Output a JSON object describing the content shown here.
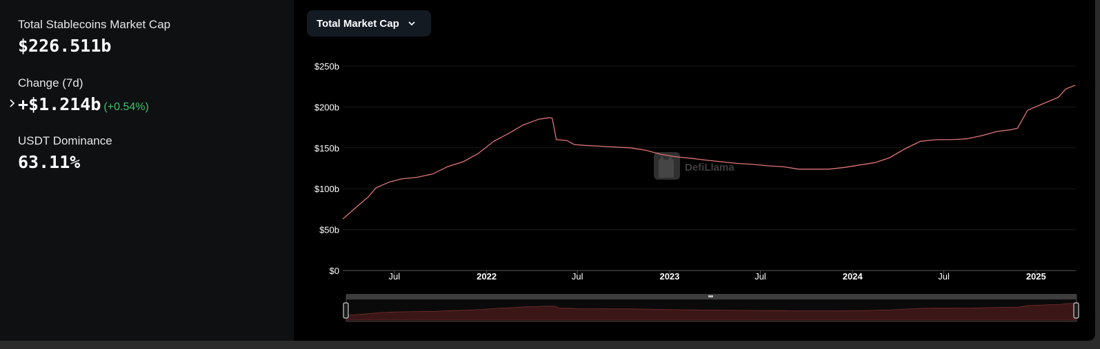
{
  "stats": {
    "mcap_label": "Total Stablecoins Market Cap",
    "mcap_value": "$226.511b",
    "change_label": "Change (7d)",
    "change_value": "+$1.214b",
    "change_pct": "(+0.54%)",
    "dominance_label": "USDT Dominance",
    "dominance_value": "63.11%"
  },
  "dropdown": {
    "label": "Total Market Cap",
    "icon": "chevron-down-icon"
  },
  "watermark": "DefiLlama",
  "colors": {
    "line": "#e2777a",
    "positive": "#3fc26e",
    "panel": "#0e1012",
    "grid": "#1c1c1c"
  },
  "chart_data": {
    "type": "line",
    "title": "",
    "xlabel": "",
    "ylabel": "",
    "x_range": [
      "2021-03-20",
      "2025-03-20"
    ],
    "ylim": [
      0,
      250
    ],
    "y_unit": "billion USD",
    "y_ticks": [
      "$0",
      "$50b",
      "$100b",
      "$150b",
      "$200b",
      "$250b"
    ],
    "x_ticks": [
      {
        "date": "2021-07-01",
        "label": "Jul",
        "bold": false
      },
      {
        "date": "2022-01-01",
        "label": "2022",
        "bold": true
      },
      {
        "date": "2022-07-01",
        "label": "Jul",
        "bold": false
      },
      {
        "date": "2023-01-01",
        "label": "2023",
        "bold": true
      },
      {
        "date": "2023-07-01",
        "label": "Jul",
        "bold": false
      },
      {
        "date": "2024-01-01",
        "label": "2024",
        "bold": true
      },
      {
        "date": "2024-07-01",
        "label": "Jul",
        "bold": false
      },
      {
        "date": "2025-01-01",
        "label": "2025",
        "bold": true
      }
    ],
    "grid": true,
    "legend": "none",
    "series": [
      {
        "x": [
          "2021-03-20",
          "2021-04-15",
          "2021-05-10",
          "2021-05-25",
          "2021-06-20",
          "2021-07-15",
          "2021-08-15",
          "2021-09-15",
          "2021-10-15",
          "2021-11-15",
          "2021-12-15",
          "2022-01-15",
          "2022-02-15",
          "2022-03-15",
          "2022-04-15",
          "2022-05-07",
          "2022-05-12",
          "2022-05-20",
          "2022-06-10",
          "2022-06-25",
          "2022-07-15",
          "2022-08-15",
          "2022-09-15",
          "2022-10-15",
          "2022-11-15",
          "2022-12-15",
          "2023-01-15",
          "2023-02-15",
          "2023-03-15",
          "2023-04-15",
          "2023-05-15",
          "2023-06-15",
          "2023-07-15",
          "2023-08-15",
          "2023-09-15",
          "2023-10-15",
          "2023-11-15",
          "2023-12-15",
          "2024-01-15",
          "2024-02-15",
          "2024-03-15",
          "2024-04-15",
          "2024-05-15",
          "2024-06-15",
          "2024-07-15",
          "2024-08-15",
          "2024-09-15",
          "2024-10-15",
          "2024-11-10",
          "2024-11-25",
          "2024-12-15",
          "2025-01-15",
          "2025-02-15",
          "2025-03-01",
          "2025-03-20"
        ],
        "values": [
          63,
          77,
          90,
          101,
          108,
          112,
          114,
          118,
          127,
          133,
          143,
          158,
          168,
          178,
          185,
          187,
          186,
          160,
          159,
          154,
          153,
          152,
          151,
          150,
          147,
          142,
          139,
          137,
          135,
          133,
          131,
          130,
          128,
          127,
          124,
          124,
          124,
          126,
          129,
          132,
          138,
          149,
          158,
          160,
          160,
          161,
          165,
          170,
          172,
          174,
          196,
          204,
          212,
          222,
          226.5
        ]
      }
    ]
  }
}
